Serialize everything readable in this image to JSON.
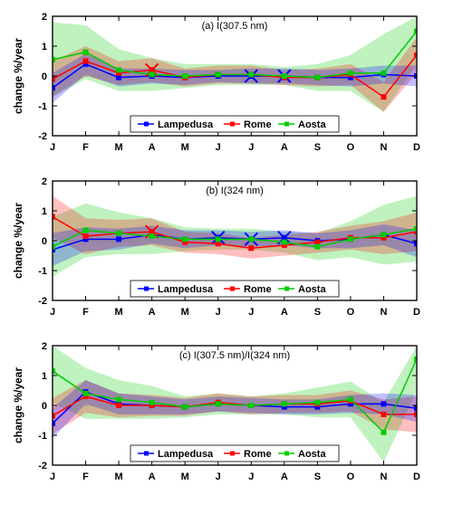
{
  "months": [
    "J",
    "F",
    "M",
    "A",
    "M",
    "J",
    "J",
    "A",
    "S",
    "O",
    "N",
    "D"
  ],
  "series": {
    "lampedusa": {
      "label": "Lampedusa",
      "color": "#0000ff",
      "marker": "square"
    },
    "rome": {
      "label": "Rome",
      "color": "#ff0000",
      "marker": "square"
    },
    "aosta": {
      "label": "Aosta",
      "color": "#00cc00",
      "marker": "square"
    }
  },
  "chart_style": {
    "background_color": "#ffffff",
    "axis_color": "#000000",
    "axis_width": 1.2,
    "zero_line_color": "#888888",
    "zero_line_dash": "4,3",
    "marker_size": 5,
    "line_width": 1.5,
    "band_opacity": 0.25,
    "cross_size": 7,
    "cross_width": 2,
    "ylabel_fontsize": 12,
    "tick_fontsize": 11,
    "title_fontsize": 11,
    "legend_fontsize": 11
  },
  "panels": [
    {
      "id": "a",
      "title": "(a) I(307.5 nm)",
      "ylabel": "change %/year",
      "ylim": [
        -2,
        2
      ],
      "yticks": [
        -2,
        -1,
        0,
        1,
        2
      ],
      "legend_pos": "bottom",
      "lampedusa": {
        "values": [
          -0.4,
          0.4,
          -0.05,
          0.0,
          -0.05,
          0.0,
          0.0,
          0.0,
          -0.05,
          -0.05,
          0.05,
          0.0
        ],
        "band_lo": [
          -0.9,
          0.05,
          -0.35,
          -0.25,
          -0.3,
          -0.2,
          -0.25,
          -0.25,
          -0.3,
          -0.35,
          -0.25,
          -0.35
        ],
        "band_hi": [
          0.1,
          0.75,
          0.25,
          0.25,
          0.2,
          0.2,
          0.25,
          0.25,
          0.2,
          0.25,
          0.35,
          0.35
        ],
        "crosses": [
          6,
          7
        ]
      },
      "rome": {
        "values": [
          -0.1,
          0.5,
          0.1,
          0.2,
          -0.05,
          0.05,
          0.05,
          -0.05,
          -0.05,
          0.05,
          -0.7,
          0.7
        ],
        "band_lo": [
          -0.7,
          0.0,
          -0.3,
          -0.2,
          -0.35,
          -0.25,
          -0.25,
          -0.3,
          -0.35,
          -0.3,
          -1.2,
          0.1
        ],
        "band_hi": [
          0.5,
          1.0,
          0.5,
          0.6,
          0.25,
          0.35,
          0.35,
          0.2,
          0.25,
          0.4,
          -0.2,
          1.3
        ],
        "crosses": [
          3
        ]
      },
      "aosta": {
        "values": [
          0.55,
          0.8,
          0.2,
          0.05,
          0.0,
          0.05,
          0.05,
          0.0,
          -0.05,
          0.1,
          0.1,
          1.5
        ],
        "band_lo": [
          -0.7,
          -0.1,
          -0.5,
          -0.5,
          -0.4,
          -0.3,
          -0.3,
          -0.3,
          -0.5,
          -0.5,
          -1.2,
          0.4
        ],
        "band_hi": [
          1.8,
          1.7,
          0.9,
          0.6,
          0.4,
          0.4,
          0.4,
          0.3,
          0.4,
          0.7,
          1.4,
          2.0
        ],
        "crosses": []
      }
    },
    {
      "id": "b",
      "title": "(b) I(324 nm)",
      "ylabel": "change %/year",
      "ylim": [
        -2,
        2
      ],
      "yticks": [
        -2,
        -1,
        0,
        1,
        2
      ],
      "legend_pos": "bottom",
      "lampedusa": {
        "values": [
          -0.3,
          0.05,
          0.05,
          0.2,
          0.05,
          0.1,
          0.05,
          0.1,
          0.0,
          0.05,
          0.2,
          -0.1
        ],
        "band_lo": [
          -0.85,
          -0.35,
          -0.3,
          -0.1,
          -0.25,
          -0.15,
          -0.2,
          -0.15,
          -0.25,
          -0.25,
          -0.15,
          -0.55
        ],
        "band_hi": [
          0.25,
          0.45,
          0.4,
          0.5,
          0.35,
          0.35,
          0.3,
          0.35,
          0.25,
          0.35,
          0.55,
          0.35
        ],
        "crosses": [
          5,
          6,
          7
        ]
      },
      "rome": {
        "values": [
          0.8,
          0.15,
          0.25,
          0.3,
          -0.05,
          -0.1,
          -0.25,
          -0.15,
          -0.05,
          0.1,
          0.1,
          0.3
        ],
        "band_lo": [
          0.1,
          -0.45,
          -0.2,
          -0.15,
          -0.4,
          -0.45,
          -0.6,
          -0.5,
          -0.4,
          -0.3,
          -0.45,
          -0.35
        ],
        "band_hi": [
          1.5,
          0.75,
          0.7,
          0.75,
          0.3,
          0.25,
          0.1,
          0.2,
          0.3,
          0.5,
          0.65,
          0.95
        ],
        "crosses": [
          3
        ]
      },
      "aosta": {
        "values": [
          -0.2,
          0.35,
          0.25,
          0.15,
          0.05,
          0.05,
          0.05,
          -0.05,
          -0.2,
          0.05,
          0.2,
          0.4
        ],
        "band_lo": [
          -1.2,
          -0.55,
          -0.45,
          -0.45,
          -0.35,
          -0.3,
          -0.3,
          -0.4,
          -0.65,
          -0.55,
          -0.8,
          -0.7
        ],
        "band_hi": [
          0.8,
          1.25,
          0.95,
          0.75,
          0.45,
          0.4,
          0.4,
          0.3,
          0.25,
          0.65,
          1.2,
          1.5
        ],
        "crosses": []
      }
    },
    {
      "id": "c",
      "title": "(c) I(307.5 nm)/I(324 nm)",
      "ylabel": "change %/year",
      "ylim": [
        -2,
        2
      ],
      "yticks": [
        -2,
        -1,
        0,
        1,
        2
      ],
      "legend_pos": "bottom",
      "lampedusa": {
        "values": [
          -0.6,
          0.45,
          0.05,
          0.0,
          -0.05,
          0.05,
          0.0,
          -0.05,
          -0.05,
          0.05,
          0.05,
          -0.1
        ],
        "band_lo": [
          -1.1,
          0.05,
          -0.3,
          -0.3,
          -0.3,
          -0.2,
          -0.25,
          -0.3,
          -0.3,
          -0.25,
          -0.3,
          -0.55
        ],
        "band_hi": [
          -0.1,
          0.85,
          0.4,
          0.3,
          0.2,
          0.3,
          0.25,
          0.2,
          0.2,
          0.35,
          0.4,
          0.35
        ],
        "crosses": []
      },
      "rome": {
        "values": [
          -0.35,
          0.3,
          0.0,
          0.0,
          -0.05,
          0.1,
          0.0,
          0.05,
          0.05,
          0.15,
          -0.3,
          -0.3
        ],
        "band_lo": [
          -0.95,
          -0.25,
          -0.4,
          -0.35,
          -0.35,
          -0.2,
          -0.3,
          -0.25,
          -0.25,
          -0.2,
          -0.8,
          -0.9
        ],
        "band_hi": [
          0.25,
          0.85,
          0.4,
          0.35,
          0.25,
          0.4,
          0.3,
          0.35,
          0.35,
          0.5,
          0.2,
          0.3
        ],
        "crosses": []
      },
      "aosta": {
        "values": [
          1.15,
          0.4,
          0.2,
          0.1,
          -0.05,
          0.05,
          0.0,
          0.05,
          0.1,
          0.2,
          -0.9,
          1.55
        ],
        "band_lo": [
          0.1,
          -0.45,
          -0.45,
          -0.45,
          -0.4,
          -0.3,
          -0.3,
          -0.3,
          -0.4,
          -0.4,
          -1.9,
          0.5
        ],
        "band_hi": [
          2.0,
          1.25,
          0.85,
          0.65,
          0.3,
          0.4,
          0.3,
          0.4,
          0.6,
          0.8,
          0.1,
          2.0
        ],
        "crosses": []
      }
    }
  ]
}
